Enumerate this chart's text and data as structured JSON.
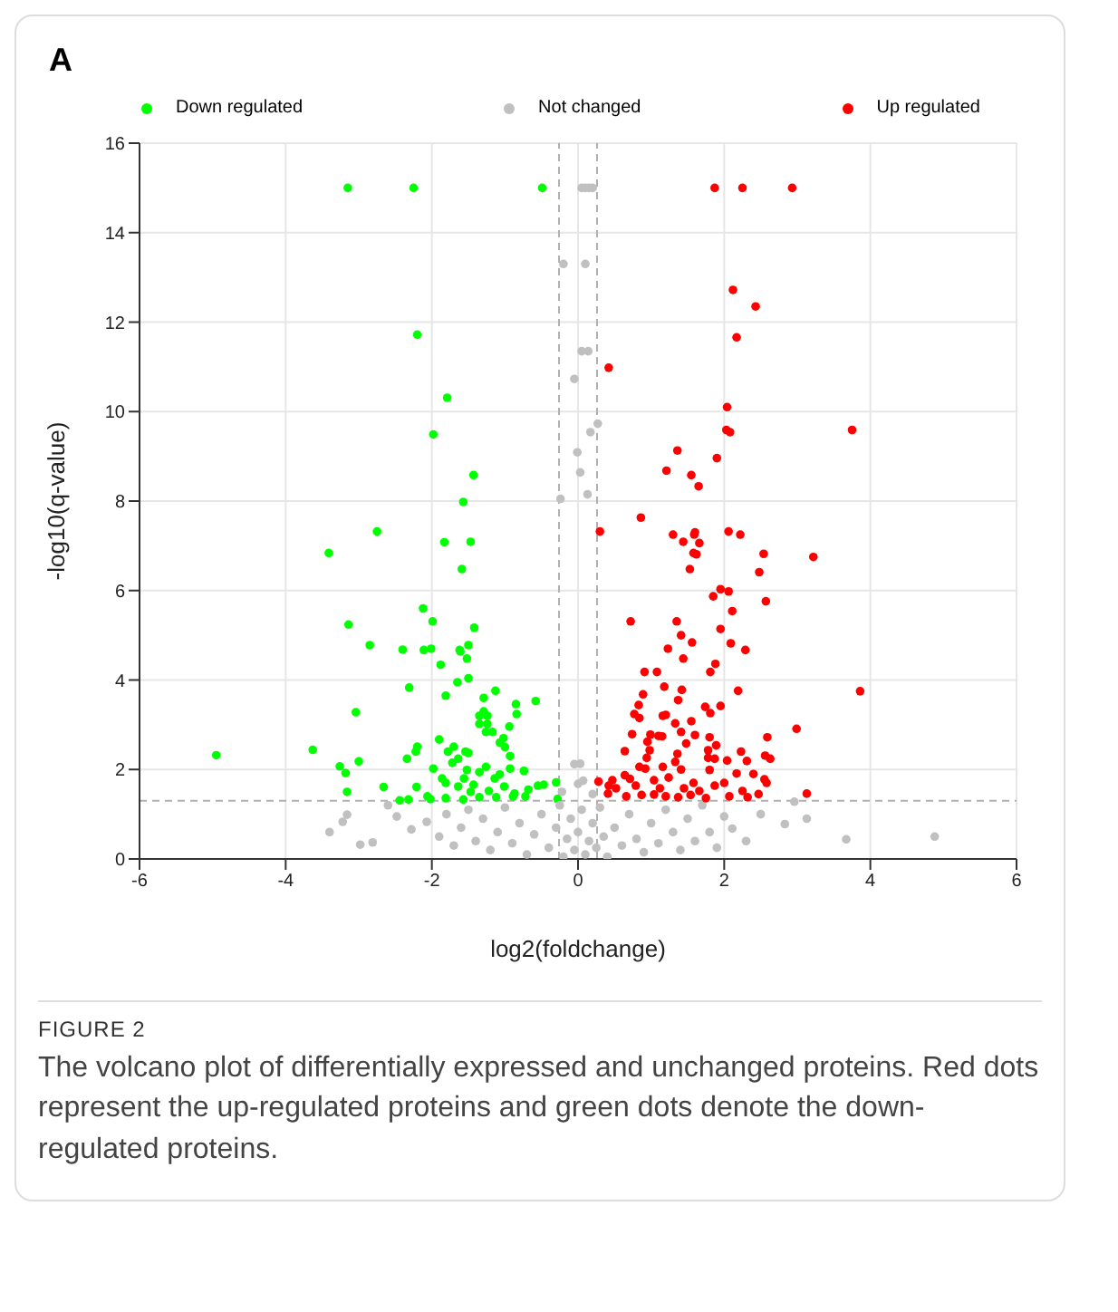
{
  "chart_data": {
    "type": "scatter",
    "title": "A",
    "xlabel": "log2(foldchange)",
    "ylabel": "-log10(q-value)",
    "xlim": [
      -6,
      6
    ],
    "ylim": [
      0,
      16
    ],
    "xticks": [
      -6,
      -4,
      -2,
      0,
      2,
      4,
      6
    ],
    "yticks": [
      0,
      2,
      4,
      6,
      8,
      10,
      12,
      14,
      16
    ],
    "grid": true,
    "legend": "top",
    "marker": "circle",
    "ref_lines": [
      {
        "axis": "x",
        "value": -0.26,
        "color": "#b0b0b0",
        "line_style": "dashed"
      },
      {
        "axis": "x",
        "value": 0.26,
        "color": "#b0b0b0",
        "line_style": "dashed"
      },
      {
        "axis": "y",
        "value": 1.3,
        "color": "#b0b0b0",
        "line_style": "dashed"
      }
    ],
    "annotations": [
      "FIGURE 2",
      "The volcano plot of differentially expressed and unchanged proteins. Red dots represent the up-regulated proteins and green dots denote the down-regulated proteins."
    ],
    "series": [
      {
        "name": "Down regulated",
        "color": "#00ff00",
        "x": [
          -3.15,
          -2.25,
          -0.49,
          -2.2,
          -1.79,
          -1.98,
          -1.43,
          -1.57,
          -2.75,
          -1.83,
          -1.47,
          -3.41,
          -1.59,
          -2.12,
          -1.99,
          -3.14,
          -1.42,
          -2.85,
          -2.4,
          -2.11,
          -2.01,
          -1.62,
          -1.61,
          -1.5,
          -1.52,
          -1.88,
          -1.5,
          -1.65,
          -2.31,
          -1.81,
          -3.04,
          -1.29,
          -1.29,
          -1.13,
          -0.85,
          -0.58,
          -0.84,
          -1.35,
          -1.24,
          -1.35,
          -1.24,
          -0.94,
          -1.26,
          -1.17,
          -1.07,
          -1.02,
          -4.95,
          -3.63,
          -2.2,
          -2.22,
          -2.34,
          -3.0,
          -1.9,
          -1.7,
          -1.78,
          -1.54,
          -1.5,
          -1.0,
          -0.93,
          -3.26,
          -3.18,
          -3.16,
          -2.66,
          -2.44,
          -2.32,
          -2.21,
          -1.98,
          -1.86,
          -1.56,
          -1.35,
          -1.14,
          -0.93,
          -0.74,
          -1.64,
          -1.43,
          -1.22,
          -1.01,
          -0.87,
          -0.68,
          -0.55,
          -0.47,
          -0.3,
          -0.28,
          -2.06,
          -1.81,
          -1.57,
          -1.35,
          -1.12,
          -0.89,
          -0.72,
          -2.02,
          -1.47,
          -1.07,
          -1.26,
          -1.52,
          -1.81,
          -1.72,
          -1.64
        ],
        "values": [
          15,
          15,
          15,
          11.72,
          10.31,
          9.49,
          8.58,
          7.98,
          7.32,
          7.08,
          7.09,
          6.84,
          6.48,
          5.6,
          5.31,
          5.24,
          5.17,
          4.78,
          4.68,
          4.67,
          4.7,
          4.67,
          4.64,
          4.78,
          4.48,
          4.34,
          4.04,
          3.95,
          3.83,
          3.65,
          3.28,
          3.3,
          3.6,
          3.76,
          3.46,
          3.53,
          3.24,
          3.2,
          3.2,
          3.02,
          3.02,
          2.96,
          2.84,
          2.84,
          2.6,
          2.7,
          2.32,
          2.44,
          2.51,
          2.4,
          2.24,
          2.18,
          2.67,
          2.51,
          2.4,
          2.4,
          2.37,
          2.5,
          2.3,
          2.07,
          1.92,
          1.5,
          1.61,
          1.31,
          1.33,
          1.61,
          2.02,
          1.8,
          1.8,
          1.94,
          1.8,
          2.02,
          1.97,
          1.62,
          1.66,
          1.52,
          1.62,
          1.46,
          1.55,
          1.64,
          1.66,
          1.71,
          1.34,
          1.4,
          1.36,
          1.33,
          1.38,
          1.38,
          1.4,
          1.4,
          1.34,
          1.5,
          1.89,
          2.06,
          1.99,
          1.7,
          2.15,
          2.24
        ]
      },
      {
        "name": "Not changed",
        "color": "#c0c0c0",
        "x": [
          0.05,
          0.1,
          0.15,
          0.2,
          -0.2,
          0.1,
          0.05,
          0.14,
          -0.05,
          0.27,
          0.17,
          -0.01,
          0.03,
          -0.24,
          0.13,
          0.03,
          0.07,
          -0.05,
          0.0,
          -0.22,
          0.2,
          -3.22,
          -3.16,
          -2.81,
          -2.98,
          -2.48,
          -2.28,
          -2.07,
          -1.9,
          -1.8,
          -1.7,
          -1.6,
          -1.5,
          -1.4,
          -1.3,
          -1.2,
          -1.1,
          -1.0,
          -0.9,
          -0.8,
          -0.7,
          -0.6,
          -0.5,
          -0.4,
          -0.3,
          -0.25,
          -0.2,
          -0.15,
          -0.1,
          -0.05,
          0,
          0.05,
          0.1,
          0.15,
          0.2,
          0.25,
          0.3,
          0.35,
          0.4,
          0.5,
          0.6,
          0.7,
          0.8,
          0.9,
          1.0,
          1.1,
          1.2,
          1.3,
          1.4,
          1.5,
          1.6,
          1.7,
          1.8,
          1.9,
          2.0,
          2.11,
          2.3,
          2.5,
          2.83,
          2.96,
          3.13,
          3.67,
          4.88,
          -2.6,
          -3.4
        ],
        "values": [
          15,
          15,
          15,
          15,
          13.3,
          13.3,
          11.35,
          11.35,
          10.73,
          9.73,
          9.54,
          9.09,
          8.64,
          8.05,
          8.15,
          2.13,
          1.75,
          2.12,
          1.68,
          1.5,
          1.45,
          0.83,
          0.99,
          0.37,
          0.32,
          0.95,
          0.66,
          0.83,
          0.5,
          1.0,
          0.3,
          0.7,
          1.1,
          0.4,
          0.9,
          0.2,
          0.6,
          1.15,
          0.35,
          0.8,
          0.1,
          0.55,
          1.0,
          0.25,
          0.7,
          1.2,
          0.05,
          0.45,
          0.9,
          0.2,
          0.6,
          1.1,
          0.1,
          0.4,
          0.8,
          0.25,
          1.15,
          0.5,
          0.05,
          0.7,
          0.3,
          1.0,
          0.45,
          0.15,
          0.8,
          0.35,
          1.1,
          0.6,
          0.2,
          0.9,
          0.4,
          1.2,
          0.6,
          0.25,
          0.95,
          0.68,
          0.4,
          1.0,
          0.78,
          1.28,
          0.9,
          0.44,
          0.5,
          1.2,
          0.6
        ]
      },
      {
        "name": "Up regulated",
        "color": "#ff0000",
        "x": [
          1.87,
          2.25,
          2.93,
          2.12,
          2.43,
          2.17,
          0.42,
          2.04,
          2.03,
          2.08,
          3.75,
          1.36,
          1.9,
          1.21,
          1.55,
          1.65,
          0.86,
          0.3,
          1.3,
          1.44,
          1.59,
          1.6,
          1.66,
          2.06,
          2.22,
          1.58,
          1.62,
          2.54,
          3.22,
          1.53,
          2.48,
          1.95,
          1.85,
          2.06,
          2.57,
          2.11,
          0.72,
          1.35,
          1.95,
          1.41,
          1.56,
          2.09,
          1.23,
          2.29,
          1.44,
          1.88,
          1.81,
          0.91,
          1.08,
          1.18,
          1.42,
          2.19,
          3.86,
          0.89,
          1.37,
          0.83,
          1.74,
          1.95,
          1.81,
          0.77,
          1.16,
          1.2,
          0.84,
          1.55,
          1.33,
          2.99,
          0.74,
          0.99,
          1.41,
          1.6,
          1.1,
          1.15,
          1.8,
          2.59,
          1.48,
          0.95,
          1.89,
          0.98,
          1.78,
          0.64,
          1.36,
          2.23,
          2.56,
          2.63,
          0.94,
          1.78,
          1.87,
          2.04,
          2.31,
          0.84,
          0.64,
          0.47,
          0.28,
          0.42,
          0.52,
          0.71,
          0.92,
          1.16,
          1.33,
          1.41,
          1.8,
          1.58,
          2.17,
          2.4,
          2.55,
          2.58,
          2.0,
          1.87,
          2.25,
          2.47,
          3.13,
          2.07,
          2.32,
          1.75,
          1.54,
          1.37,
          1.2,
          1.04,
          0.87,
          0.66,
          0.41,
          1.04,
          1.24,
          1.45,
          1.66,
          1.12,
          0.79
        ],
        "values": [
          15,
          15,
          15,
          12.72,
          12.35,
          11.66,
          10.98,
          10.1,
          9.59,
          9.54,
          9.59,
          9.13,
          8.96,
          8.68,
          8.58,
          8.33,
          7.63,
          7.32,
          7.25,
          7.09,
          7.25,
          7.3,
          7.06,
          7.32,
          7.25,
          6.84,
          6.81,
          6.82,
          6.75,
          6.48,
          6.41,
          6.03,
          5.87,
          5.98,
          5.76,
          5.54,
          5.31,
          5.31,
          5.14,
          5.0,
          4.84,
          4.82,
          4.7,
          4.67,
          4.48,
          4.36,
          4.18,
          4.18,
          4.18,
          3.85,
          3.78,
          3.76,
          3.75,
          3.68,
          3.55,
          3.44,
          3.4,
          3.42,
          3.26,
          3.24,
          3.2,
          3.22,
          3.15,
          3.08,
          3.03,
          2.91,
          2.79,
          2.78,
          2.84,
          2.77,
          2.75,
          2.74,
          2.72,
          2.72,
          2.58,
          2.62,
          2.54,
          2.43,
          2.43,
          2.41,
          2.35,
          2.4,
          2.31,
          2.24,
          2.26,
          2.26,
          2.24,
          2.2,
          2.19,
          2.06,
          1.87,
          1.76,
          1.73,
          1.64,
          1.58,
          1.79,
          2.02,
          2.06,
          2.17,
          2.0,
          1.99,
          1.7,
          1.91,
          1.9,
          1.78,
          1.7,
          1.7,
          1.64,
          1.52,
          1.45,
          1.46,
          1.4,
          1.38,
          1.36,
          1.43,
          1.38,
          1.4,
          1.44,
          1.43,
          1.4,
          1.46,
          1.76,
          1.82,
          1.58,
          1.52,
          1.58,
          1.64
        ]
      }
    ]
  }
}
